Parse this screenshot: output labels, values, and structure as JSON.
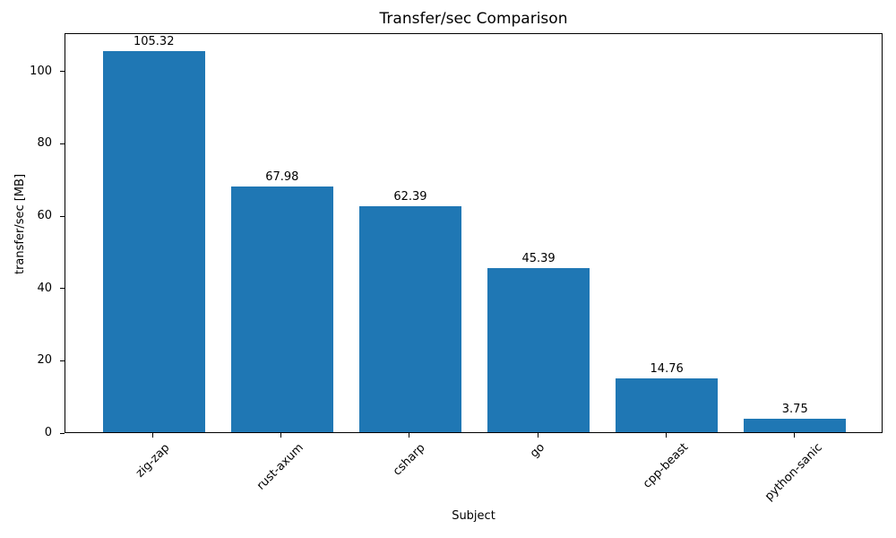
{
  "chart_data": {
    "type": "bar",
    "title": "Transfer/sec Comparison",
    "xlabel": "Subject",
    "ylabel": "transfer/sec [MB]",
    "categories": [
      "zig-zap",
      "rust-axum",
      "csharp",
      "go",
      "cpp-beast",
      "python-sanic"
    ],
    "values": [
      105.32,
      67.98,
      62.39,
      45.39,
      14.76,
      3.75
    ],
    "value_labels": [
      "105.32",
      "67.98",
      "62.39",
      "45.39",
      "14.76",
      "3.75"
    ],
    "yticks": [
      0,
      20,
      40,
      60,
      80,
      100
    ],
    "ylim": [
      0,
      110.6
    ],
    "bar_color": "#1f77b4",
    "axis_color": "#000000",
    "grid": false,
    "legend": null,
    "xtick_rotation_deg": 45,
    "bar_width_fraction": 0.8
  }
}
